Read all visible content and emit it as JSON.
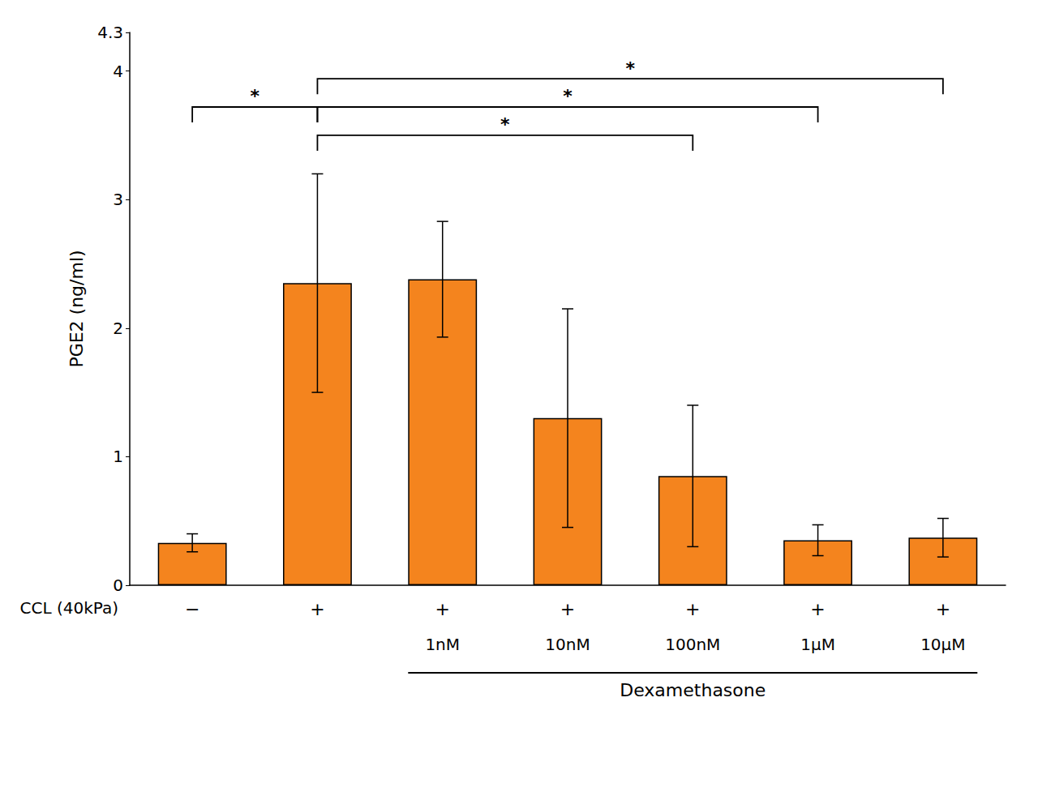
{
  "chart_data": {
    "type": "bar",
    "ylabel": "PGE2 (ng/ml)",
    "categories": [
      null,
      null,
      null,
      null,
      null,
      null,
      null
    ],
    "values": [
      0.33,
      2.35,
      2.38,
      1.3,
      0.85,
      0.35,
      0.37
    ],
    "errors": [
      0.07,
      0.85,
      0.45,
      0.85,
      0.55,
      0.12,
      0.15
    ],
    "color": "#F4841E",
    "ylim": [
      0,
      4.3
    ],
    "yticks": [
      0,
      1,
      2,
      3,
      4
    ],
    "grid": false,
    "tick_labels": "y",
    "annotations": {
      "rows": [
        {
          "label": "CCL (40kPa)",
          "values": [
            "−",
            "+",
            "+",
            "+",
            "+",
            "+",
            "+"
          ]
        },
        {
          "values": [
            null,
            null,
            "1nM",
            "10nM",
            "100nM",
            "1μM",
            "10μM"
          ]
        }
      ],
      "groups": [
        {
          "label": "Dexamethasone",
          "from": 2,
          "to": 6
        }
      ],
      "brackets": [
        {
          "from": 0,
          "to": 1,
          "y": 3.72,
          "label": "*"
        },
        {
          "from": 1,
          "to": 4,
          "y": 3.5,
          "label": "*"
        },
        {
          "from": 1,
          "to": 5,
          "y": 3.72,
          "label": "*"
        },
        {
          "from": 1,
          "to": 6,
          "y": 3.94,
          "label": "*"
        }
      ]
    }
  }
}
